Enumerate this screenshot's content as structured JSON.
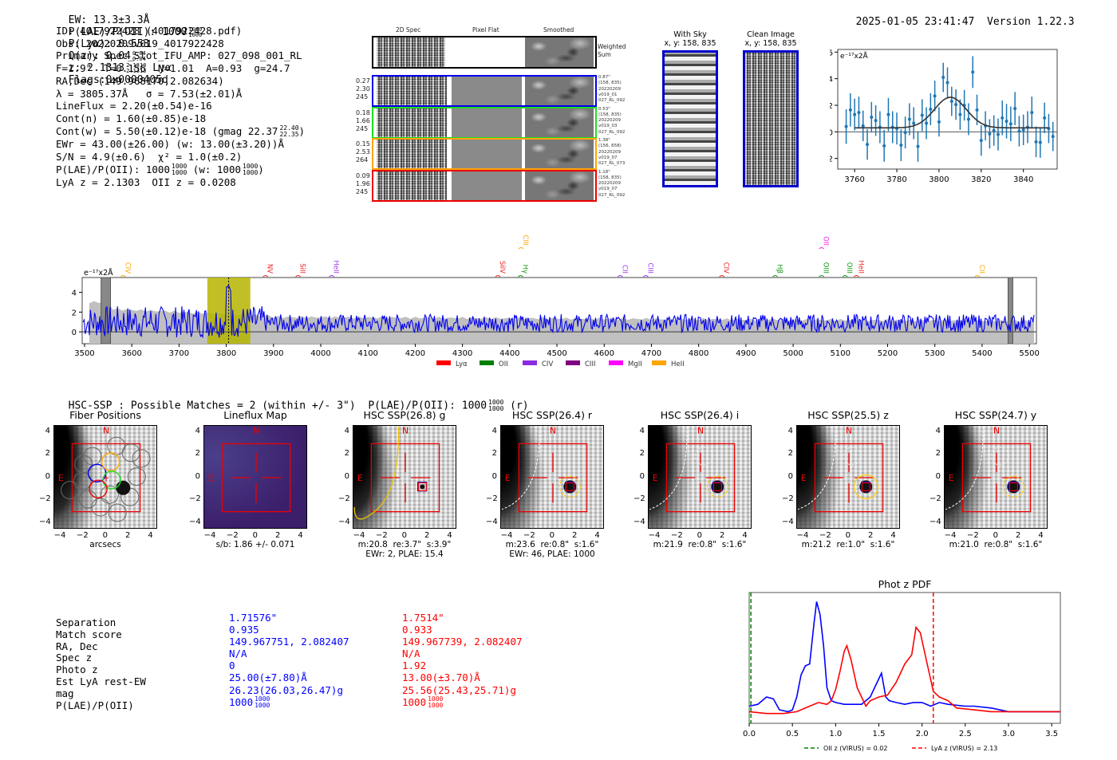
{
  "header": {
    "ew": "EW: 13.3±3.3Å",
    "plae_label": "P(LAE)/P(OII): 1000",
    "plae_hi": "1000",
    "plae_lo": "1000",
    "plya": "P(Lyα): 0.553",
    "qz_label": "Q(z): 0.04",
    "qz_hi": "0.04",
    "qz_lo": "0.04",
    "z_label": "z: 2.1313",
    "z_hi": "2.1313",
    "z_lo": "2.1313",
    "z_line": "Lyα",
    "flags": "Flags:0x0000405d",
    "timestamp": "2025-01-05 23:41:47",
    "version": "Version 1.22.3"
  },
  "info": {
    "lines": [
      "ID: 4017922428 (4017922428.pdf)",
      "Obs: 20220209v019_4017922428",
      "Primary Spec_Slot_IFU_AMP: 027_098_001_RL",
      "F=1.9\"  T=0.156  N=1.01  A=0.93  g=24.7",
      "RA,Dec (149.968170,2.082634)",
      "λ = 3805.37Å   σ = 7.53(±2.01)Å",
      "LineFlux = 2.20(±0.54)e-16",
      "Cont(n) = 1.60(±0.85)e-18"
    ],
    "contw": "Cont(w) = 5.50(±0.12)e-18 (gmag 22.37",
    "contw_hi": "22.40",
    "contw_lo": "22.35",
    "contw_end": ")",
    "ewr": "EWr = 43.00(±26.00) (w: 13.00(±3.20))Å",
    "sn": "S/N = 4.9(±0.6)  χ² = 1.0(±0.2)",
    "plae": "P(LAE)/P(OII): 1000",
    "plae_hi": "1000",
    "plae_lo": "1000",
    "plae_w": "(w: 1000",
    "plae_w_hi": "1000",
    "plae_w_lo": "1000",
    "plae_w_end": ")",
    "redshifts": "LyA z = 2.1303  OII z = 0.0208"
  },
  "spec2d": {
    "col_headers": [
      "2D Spec",
      "Pixel Flat",
      "Smoothed"
    ],
    "weighted_label": "Weighted Sum",
    "fibers": [
      {
        "color": "#0000ee",
        "stats": [
          "0.27",
          "2.30",
          "245"
        ],
        "info": [
          "0.87\"",
          "(158, 835)",
          "20220209",
          "v019_01",
          "027_RL_092"
        ]
      },
      {
        "color": "#22dd22",
        "stats": [
          "0.18",
          "1.66",
          "245"
        ],
        "info": [
          "0.53\"",
          "(158, 835)",
          "20220209",
          "v019_03",
          "027_RL_092"
        ]
      },
      {
        "color": "#ffa500",
        "stats": [
          "0.15",
          "2.53",
          "264"
        ],
        "info": [
          "1.38\"",
          "(156, 658)",
          "20220209",
          "v019_07",
          "027_RL_073"
        ]
      },
      {
        "color": "#ee0000",
        "stats": [
          "0.09",
          "1.96",
          "245"
        ],
        "info": [
          "1.18\"",
          "(158, 835)",
          "20220209",
          "v019_07",
          "027_RL_092"
        ]
      }
    ]
  },
  "ccd": {
    "with_sky_title": "With Sky",
    "with_sky_coords": "x, y: 158, 835",
    "clean_title": "Clean Image",
    "clean_coords": "x, y: 158, 835"
  },
  "zoom_spec": {
    "unit_label": "e⁻¹⁷x2Å",
    "xticks": [
      "3760",
      "3780",
      "3800",
      "3820",
      "3840"
    ],
    "yticks": [
      "6",
      "4",
      "2",
      "0",
      "−2"
    ]
  },
  "full_spec": {
    "unit_label": "e⁻¹⁷x2Å",
    "xticks": [
      "3500",
      "3600",
      "3700",
      "3800",
      "3900",
      "4000",
      "4100",
      "4200",
      "4300",
      "4400",
      "4500",
      "4600",
      "4700",
      "4800",
      "4900",
      "5000",
      "5100",
      "5200",
      "5300",
      "5400",
      "5500"
    ],
    "yticks": [
      "4",
      "2",
      "0"
    ],
    "lines": [
      {
        "name": "CIV",
        "wave": 3582,
        "color": "#ffa500",
        "row": 1
      },
      {
        "name": "NV",
        "wave": 3883,
        "color": "#ee2222",
        "row": 1
      },
      {
        "name": "SiII",
        "wave": 3952,
        "color": "#ee2222",
        "row": 1
      },
      {
        "name": "HeII",
        "wave": 4023,
        "color": "#9933ee",
        "row": 1
      },
      {
        "name": "SiIV",
        "wave": 4375,
        "color": "#ee2222",
        "row": 1
      },
      {
        "name": "CIII",
        "wave": 4424,
        "color": "#ffa500",
        "row": 0
      },
      {
        "name": "Hγ",
        "wave": 4423,
        "color": "#119911",
        "row": 1
      },
      {
        "name": "CII",
        "wave": 4634,
        "color": "#9933ee",
        "row": 1
      },
      {
        "name": "CIII",
        "wave": 4688,
        "color": "#9933ee",
        "row": 1
      },
      {
        "name": "CIV",
        "wave": 4849,
        "color": "#ee2222",
        "row": 1
      },
      {
        "name": "Hβ",
        "wave": 4962,
        "color": "#119911",
        "row": 1
      },
      {
        "name": "OII",
        "wave": 5060,
        "color": "#ee22ee",
        "row": 0
      },
      {
        "name": "OIII",
        "wave": 5060,
        "color": "#119911",
        "row": 1
      },
      {
        "name": "OIII",
        "wave": 5110,
        "color": "#119911",
        "row": 1
      },
      {
        "name": "HeII",
        "wave": 5134,
        "color": "#ee2222",
        "row": 1
      },
      {
        "name": "CII",
        "wave": 5390,
        "color": "#ffa500",
        "row": 1
      }
    ],
    "legend": [
      {
        "label": "Lyα",
        "color": "#ff0000"
      },
      {
        "label": "OII",
        "color": "#008000"
      },
      {
        "label": "CIV",
        "color": "#8a2be2"
      },
      {
        "label": "CIII",
        "color": "#800080"
      },
      {
        "label": "MgII",
        "color": "#ff00ff"
      },
      {
        "label": "HeII",
        "color": "#ffa500"
      }
    ]
  },
  "hsc": {
    "title_main": "HSC-SSP : Possible Matches = 2 (within +/- 3\")  P(LAE)/P(OII): 1000",
    "title_hi": "1000",
    "title_lo": "1000",
    "title_end": "(r)",
    "axis_ticks": [
      "4",
      "2",
      "0",
      "−2",
      "−4"
    ],
    "x_ticks": [
      "−4",
      "−2",
      "0",
      "2",
      "4"
    ],
    "panels": [
      {
        "title": "Fiber Positions",
        "caption": [
          "arcsecs"
        ],
        "kind": "fiber"
      },
      {
        "title": "Lineflux Map",
        "caption": [
          "s/b: 1.86 +/- 0.071"
        ],
        "kind": "lineflux"
      },
      {
        "title": "HSC SSP(26.8) g",
        "caption": [
          "m:20.8  re:3.7\"  s:3.9\"",
          "EWr: 2, PLAE: 15.4"
        ],
        "kind": "g"
      },
      {
        "title": "HSC SSP(26.4) r",
        "caption": [
          "m:23.6  re:0.8\"  s:1.6\"",
          "EWr: 46, PLAE: 1000"
        ],
        "kind": "r"
      },
      {
        "title": "HSC SSP(26.4) i",
        "caption": [
          "m:21.9  re:0.8\"  s:1.6\""
        ],
        "kind": "i"
      },
      {
        "title": "HSC SSP(25.5) z",
        "caption": [
          "m:21.2  re:1.0\"  s:1.6\""
        ],
        "kind": "z"
      },
      {
        "title": "HSC SSP(24.7) y",
        "caption": [
          "m:21.0  re:0.8\"  s:1.6\""
        ],
        "kind": "y"
      }
    ],
    "compass_n": "N",
    "compass_e": "E"
  },
  "compare": {
    "labels": [
      "Separation",
      "Match score",
      "RA, Dec",
      "Spec z",
      "Photo z",
      "Est LyA rest-EW",
      "mag",
      "P(LAE)/P(OII)"
    ],
    "blue": [
      "1.71576\"",
      "0.935",
      "149.967751, 2.082407",
      "N/A",
      "0",
      "25.00(±7.80)Å",
      "26.23(26.03,26.47)g",
      "1000"
    ],
    "blue_frac": [
      "1000",
      "1000"
    ],
    "red": [
      "1.7514\"",
      "0.933",
      "149.967739, 2.082407",
      "N/A",
      "1.92",
      "13.00(±3.70)Å",
      "25.56(25.43,25.71)g",
      "1000"
    ],
    "red_frac": [
      "1000",
      "1000"
    ],
    "blue_color": "#0000ff",
    "red_color": "#ff0000"
  },
  "chart_data": [
    {
      "type": "scatter",
      "title": "",
      "ylabel": "e⁻¹⁷x2Å",
      "xlim": [
        3752,
        3856
      ],
      "ylim": [
        -2.8,
        6.2
      ],
      "points": [
        [
          3756,
          0.4,
          1.3
        ],
        [
          3758,
          1.65,
          1.25
        ],
        [
          3760,
          1.3,
          1.2
        ],
        [
          3762,
          1.45,
          1.2
        ],
        [
          3764,
          0.45,
          1.15
        ],
        [
          3766,
          -0.95,
          1.15
        ],
        [
          3768,
          1.1,
          1.15
        ],
        [
          3770,
          0.85,
          1.15
        ],
        [
          3772,
          0.35,
          1.2
        ],
        [
          3774,
          -1.05,
          1.2
        ],
        [
          3776,
          1.3,
          1.25
        ],
        [
          3778,
          0.35,
          1.2
        ],
        [
          3780,
          0.25,
          1.2
        ],
        [
          3782,
          -1.0,
          1.2
        ],
        [
          3784,
          -0.05,
          1.2
        ],
        [
          3786,
          0.95,
          1.2
        ],
        [
          3788,
          0.65,
          1.2
        ],
        [
          3790,
          -1.1,
          1.15
        ],
        [
          3792,
          1.25,
          1.2
        ],
        [
          3794,
          0.65,
          1.2
        ],
        [
          3796,
          1.7,
          1.2
        ],
        [
          3798,
          2.7,
          1.15
        ],
        [
          3800,
          0.75,
          1.1
        ],
        [
          3802,
          4.1,
          1.1
        ],
        [
          3804,
          3.7,
          1.15
        ],
        [
          3806,
          2.3,
          1.1
        ],
        [
          3808,
          2.05,
          1.15
        ],
        [
          3810,
          1.3,
          1.15
        ],
        [
          3812,
          2.0,
          1.15
        ],
        [
          3814,
          0.95,
          1.2
        ],
        [
          3816,
          4.5,
          1.2
        ],
        [
          3818,
          1.65,
          1.15
        ],
        [
          3820,
          -0.65,
          1.15
        ],
        [
          3822,
          0.45,
          1.1
        ],
        [
          3824,
          -0.15,
          1.1
        ],
        [
          3826,
          0.1,
          1.15
        ],
        [
          3828,
          -0.2,
          1.2
        ],
        [
          3830,
          1.05,
          1.3
        ],
        [
          3832,
          0.8,
          1.3
        ],
        [
          3834,
          0.6,
          1.3
        ],
        [
          3836,
          1.75,
          1.25
        ],
        [
          3838,
          0.05,
          1.15
        ],
        [
          3840,
          0.15,
          1.15
        ],
        [
          3842,
          0.35,
          1.2
        ],
        [
          3844,
          1.45,
          1.2
        ],
        [
          3846,
          -0.75,
          1.15
        ],
        [
          3848,
          -0.8,
          1.15
        ],
        [
          3850,
          1.05,
          1.15
        ],
        [
          3852,
          0.25,
          1.1
        ],
        [
          3854,
          -0.35,
          1.1
        ]
      ],
      "fit": {
        "center": 3805.4,
        "sigma": 7.53,
        "amplitude": 2.3,
        "continuum": 0.3,
        "xrange": [
          3760,
          3852
        ]
      },
      "xticks": [
        3760,
        3780,
        3800,
        3820,
        3840
      ],
      "yticks": [
        -2,
        0,
        2,
        4,
        6
      ]
    },
    {
      "type": "line",
      "title": "",
      "ylabel": "e⁻¹⁷x2Å",
      "xlim": [
        3495,
        5515
      ],
      "ylim": [
        -1.2,
        5.5
      ],
      "highlight_band": [
        3760,
        3851
      ],
      "line_marker": 3805,
      "masked_regions": [
        [
          3535,
          3555
        ],
        [
          5455,
          5465
        ]
      ],
      "xticks": [
        3500,
        3600,
        3700,
        3800,
        3900,
        4000,
        4100,
        4200,
        4300,
        4400,
        4500,
        4600,
        4700,
        4800,
        4900,
        5000,
        5100,
        5200,
        5300,
        5400,
        5500
      ],
      "yticks": [
        0,
        2,
        4
      ]
    },
    {
      "type": "line",
      "title": "Phot z PDF",
      "xlim": [
        0.0,
        3.6
      ],
      "xticks": [
        0.0,
        0.5,
        1.0,
        1.5,
        2.0,
        2.5,
        3.0,
        3.5
      ],
      "vlines": [
        {
          "x": 0.02,
          "color": "#008000",
          "label": "OII z (VIRUS) = 0.02"
        },
        {
          "x": 2.13,
          "color": "#ff0000",
          "label": "LyA z (VIRUS) = 2.13"
        }
      ],
      "series": [
        {
          "name": "blue",
          "color": "#0000ff",
          "x": [
            0.0,
            0.1,
            0.2,
            0.28,
            0.35,
            0.45,
            0.5,
            0.55,
            0.6,
            0.65,
            0.7,
            0.75,
            0.78,
            0.82,
            0.86,
            0.9,
            0.95,
            1.0,
            1.1,
            1.2,
            1.3,
            1.4,
            1.47,
            1.53,
            1.58,
            1.62,
            1.7,
            1.8,
            1.9,
            2.0,
            2.1,
            2.2,
            2.3,
            2.5,
            2.6,
            2.8,
            3.0,
            3.2,
            3.6
          ],
          "y": [
            0.05,
            0.06,
            0.1,
            0.09,
            0.03,
            0.02,
            0.03,
            0.1,
            0.22,
            0.27,
            0.28,
            0.5,
            0.62,
            0.55,
            0.38,
            0.15,
            0.08,
            0.07,
            0.06,
            0.06,
            0.06,
            0.1,
            0.17,
            0.23,
            0.1,
            0.08,
            0.07,
            0.06,
            0.07,
            0.07,
            0.05,
            0.07,
            0.06,
            0.05,
            0.05,
            0.04,
            0.02,
            0.02,
            0.02
          ]
        },
        {
          "name": "red",
          "color": "#ff0000",
          "x": [
            0.0,
            0.2,
            0.4,
            0.55,
            0.7,
            0.8,
            0.9,
            0.95,
            1.0,
            1.05,
            1.1,
            1.13,
            1.18,
            1.25,
            1.35,
            1.4,
            1.5,
            1.6,
            1.7,
            1.8,
            1.88,
            1.93,
            1.98,
            2.05,
            2.13,
            2.2,
            2.3,
            2.4,
            2.6,
            2.8,
            3.0,
            3.6
          ],
          "y": [
            0.02,
            0.01,
            0.01,
            0.02,
            0.05,
            0.07,
            0.06,
            0.08,
            0.14,
            0.24,
            0.35,
            0.38,
            0.3,
            0.15,
            0.05,
            0.08,
            0.1,
            0.11,
            0.18,
            0.28,
            0.33,
            0.48,
            0.45,
            0.3,
            0.13,
            0.1,
            0.08,
            0.04,
            0.03,
            0.02,
            0.02,
            0.02
          ]
        }
      ]
    }
  ]
}
